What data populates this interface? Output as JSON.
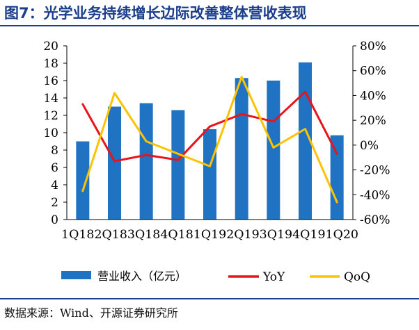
{
  "figure": {
    "title": "图7：光学业务持续增长边际改善整体营收表现",
    "source": "数据来源：Wind、开源证券研究所"
  },
  "colors": {
    "bar": "#1f73c2",
    "yoy": "#e8141b",
    "qoq": "#fdc300",
    "title": "#1b3f8b"
  },
  "chart_data": {
    "type": "bar",
    "title": "",
    "xlabel": "",
    "ylabel": "",
    "categories": [
      "1Q18",
      "2Q18",
      "3Q18",
      "4Q18",
      "1Q19",
      "2Q19",
      "3Q19",
      "4Q19",
      "1Q20"
    ],
    "x_tick_text": "1Q182Q183Q184Q181Q192Q193Q194Q191Q20",
    "ylim": [
      0,
      20
    ],
    "y_ticks": [
      "0",
      "2",
      "4",
      "6",
      "8",
      "10",
      "12",
      "14",
      "16",
      "18",
      "20"
    ],
    "y2lim": [
      -60,
      80
    ],
    "y2_ticks": [
      "-60%",
      "-40%",
      "-20%",
      "0%",
      "20%",
      "40%",
      "60%",
      "80%"
    ],
    "grid": false,
    "legend_position": "bottom",
    "series": [
      {
        "name": "营业收入（亿元）",
        "type": "bar",
        "axis": "left",
        "values": [
          9.0,
          13.0,
          13.4,
          12.6,
          10.4,
          16.3,
          16.0,
          18.1,
          9.7
        ]
      },
      {
        "name": "YoY",
        "type": "line",
        "axis": "right",
        "values": [
          33,
          -13,
          -8,
          -12,
          15,
          25,
          19,
          43,
          -7
        ]
      },
      {
        "name": "QoQ",
        "type": "line",
        "axis": "right",
        "values": [
          -37,
          42,
          3,
          -7,
          -17,
          55,
          -2,
          13,
          -46
        ]
      }
    ]
  }
}
